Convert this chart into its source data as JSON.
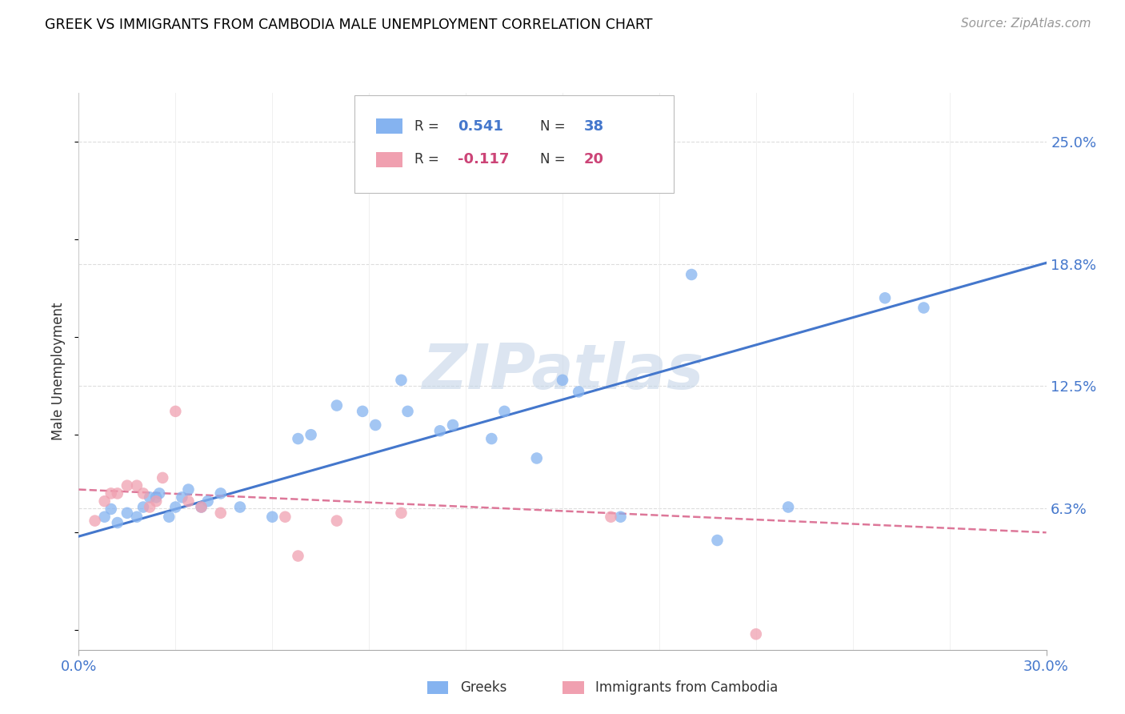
{
  "title": "GREEK VS IMMIGRANTS FROM CAMBODIA MALE UNEMPLOYMENT CORRELATION CHART",
  "source": "Source: ZipAtlas.com",
  "ylabel": "Male Unemployment",
  "xmin": 0.0,
  "xmax": 0.3,
  "ymin": -0.01,
  "ymax": 0.275,
  "ytick_vals": [
    0.0,
    0.0625,
    0.125,
    0.1875,
    0.25
  ],
  "ytick_labels": [
    "",
    "6.3%",
    "12.5%",
    "18.8%",
    "25.0%"
  ],
  "blue_color": "#85b3f0",
  "pink_color": "#f0a0b0",
  "blue_line_color": "#4477cc",
  "pink_line_color": "#dd7799",
  "watermark": "ZIPatlas",
  "watermark_color": "#c5d5e8",
  "greeks_scatter": [
    [
      0.008,
      0.058
    ],
    [
      0.01,
      0.062
    ],
    [
      0.012,
      0.055
    ],
    [
      0.015,
      0.06
    ],
    [
      0.018,
      0.058
    ],
    [
      0.02,
      0.063
    ],
    [
      0.022,
      0.068
    ],
    [
      0.024,
      0.068
    ],
    [
      0.025,
      0.07
    ],
    [
      0.028,
      0.058
    ],
    [
      0.03,
      0.063
    ],
    [
      0.032,
      0.068
    ],
    [
      0.034,
      0.072
    ],
    [
      0.038,
      0.063
    ],
    [
      0.04,
      0.066
    ],
    [
      0.044,
      0.07
    ],
    [
      0.05,
      0.063
    ],
    [
      0.06,
      0.058
    ],
    [
      0.068,
      0.098
    ],
    [
      0.072,
      0.1
    ],
    [
      0.08,
      0.115
    ],
    [
      0.088,
      0.112
    ],
    [
      0.092,
      0.105
    ],
    [
      0.1,
      0.128
    ],
    [
      0.102,
      0.112
    ],
    [
      0.112,
      0.102
    ],
    [
      0.116,
      0.105
    ],
    [
      0.128,
      0.098
    ],
    [
      0.132,
      0.112
    ],
    [
      0.142,
      0.088
    ],
    [
      0.15,
      0.128
    ],
    [
      0.155,
      0.122
    ],
    [
      0.168,
      0.058
    ],
    [
      0.19,
      0.182
    ],
    [
      0.198,
      0.046
    ],
    [
      0.22,
      0.063
    ],
    [
      0.25,
      0.17
    ],
    [
      0.262,
      0.165
    ]
  ],
  "cambodia_scatter": [
    [
      0.005,
      0.056
    ],
    [
      0.008,
      0.066
    ],
    [
      0.01,
      0.07
    ],
    [
      0.012,
      0.07
    ],
    [
      0.015,
      0.074
    ],
    [
      0.018,
      0.074
    ],
    [
      0.02,
      0.07
    ],
    [
      0.022,
      0.063
    ],
    [
      0.024,
      0.066
    ],
    [
      0.026,
      0.078
    ],
    [
      0.03,
      0.112
    ],
    [
      0.034,
      0.066
    ],
    [
      0.038,
      0.063
    ],
    [
      0.044,
      0.06
    ],
    [
      0.064,
      0.058
    ],
    [
      0.068,
      0.038
    ],
    [
      0.08,
      0.056
    ],
    [
      0.1,
      0.06
    ],
    [
      0.165,
      0.058
    ],
    [
      0.21,
      -0.002
    ]
  ],
  "blue_line_x": [
    0.0,
    0.3
  ],
  "blue_line_y": [
    0.048,
    0.188
  ],
  "pink_line_x": [
    0.0,
    0.3
  ],
  "pink_line_y": [
    0.072,
    0.05
  ]
}
